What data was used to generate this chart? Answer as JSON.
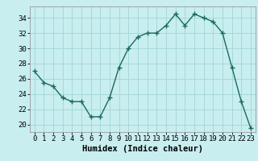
{
  "x": [
    0,
    1,
    2,
    3,
    4,
    5,
    6,
    7,
    8,
    9,
    10,
    11,
    12,
    13,
    14,
    15,
    16,
    17,
    18,
    19,
    20,
    21,
    22,
    23
  ],
  "y": [
    27,
    25.5,
    25,
    23.5,
    23,
    23,
    21,
    21,
    23.5,
    27.5,
    30,
    31.5,
    32,
    32,
    33,
    34.5,
    33,
    34.5,
    34,
    33.5,
    32,
    27.5,
    23,
    19.5
  ],
  "line_color": "#1a6b5a",
  "marker": "+",
  "marker_size": 5,
  "bg_color": "#c8eef0",
  "grid_color": "#a8d8da",
  "xlabel": "Humidex (Indice chaleur)",
  "xlim": [
    -0.5,
    23.5
  ],
  "ylim": [
    19,
    35.5
  ],
  "yticks": [
    20,
    22,
    24,
    26,
    28,
    30,
    32,
    34
  ],
  "xticks": [
    0,
    1,
    2,
    3,
    4,
    5,
    6,
    7,
    8,
    9,
    10,
    11,
    12,
    13,
    14,
    15,
    16,
    17,
    18,
    19,
    20,
    21,
    22,
    23
  ],
  "tick_label_fontsize": 6.5,
  "xlabel_fontsize": 7.5
}
